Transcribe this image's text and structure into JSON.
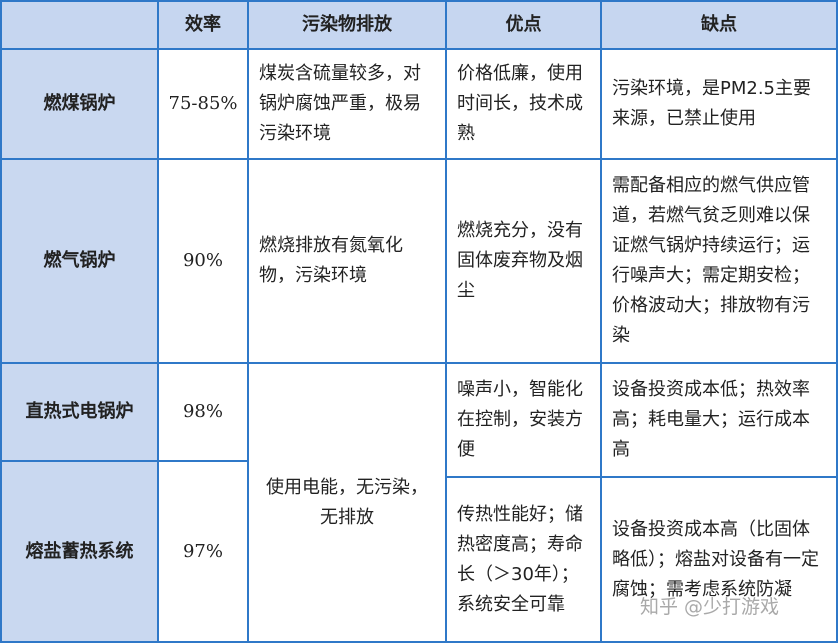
{
  "headers": [
    "",
    "效率",
    "污染物排放",
    "优点",
    "缺点"
  ],
  "rows": [
    {
      "name": "燃煤锅炉",
      "efficiency": "75-85%",
      "emission": "煤炭含硫量较多，对锅炉腐蚀严重，极易污染环境",
      "pros": "价格低廉，使用时间长，技术成熟",
      "cons": "污染环境，是PM2.5主要来源，已禁止使用"
    },
    {
      "name": "燃气锅炉",
      "efficiency": "90%",
      "emission": "燃烧排放有氮氧化物，污染环境",
      "pros": "燃烧充分，没有固体废弃物及烟尘",
      "cons": "需配备相应的燃气供应管道，若燃气贫乏则难以保证燃气锅炉持续运行；运行噪声大；需定期安检；价格波动大；排放物有污染"
    },
    {
      "name": "直热式电锅炉",
      "efficiency": "98%",
      "pros": "噪声小，智能化在控制，安装方便",
      "cons": "设备投资成本低；热效率高；耗电量大；运行成本高"
    },
    {
      "name": "熔盐蓄热系统",
      "efficiency": "97%",
      "pros": "传热性能好；储热密度高；寿命长（＞30年）；系统安全可靠",
      "cons": "设备投资成本高（比固体略低）；熔盐对设备有一定腐蚀；需考虑系统防凝"
    }
  ],
  "shared_emission": "使用电能，无污染，无排放",
  "watermark": "知乎 @少打游戏",
  "colors": {
    "border": "#2f78c8",
    "header_bg": "#c6d6f0"
  }
}
